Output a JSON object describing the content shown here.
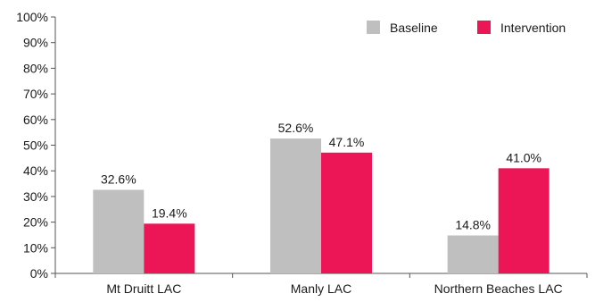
{
  "chart_data": {
    "type": "bar",
    "title": "",
    "xlabel": "",
    "ylabel": "",
    "categories": [
      "Mt Druitt LAC",
      "Manly LAC",
      "Northern Beaches LAC"
    ],
    "series": [
      {
        "name": "Baseline",
        "color": "#bfbfbf",
        "values": [
          32.6,
          52.6,
          14.8
        ],
        "labels": [
          "32.6%",
          "52.6%",
          "14.8%"
        ]
      },
      {
        "name": "Intervention",
        "color": "#ec1556",
        "values": [
          19.4,
          47.1,
          41.0
        ],
        "labels": [
          "19.4%",
          "47.1%",
          "41.0%"
        ]
      }
    ],
    "ylim": [
      0,
      100
    ],
    "yticks": [
      0,
      10,
      20,
      30,
      40,
      50,
      60,
      70,
      80,
      90,
      100
    ],
    "ytick_labels": [
      "0%",
      "10%",
      "20%",
      "30%",
      "40%",
      "50%",
      "60%",
      "70%",
      "80%",
      "90%",
      "100%"
    ],
    "grid": false,
    "legend_position": "top-right"
  }
}
